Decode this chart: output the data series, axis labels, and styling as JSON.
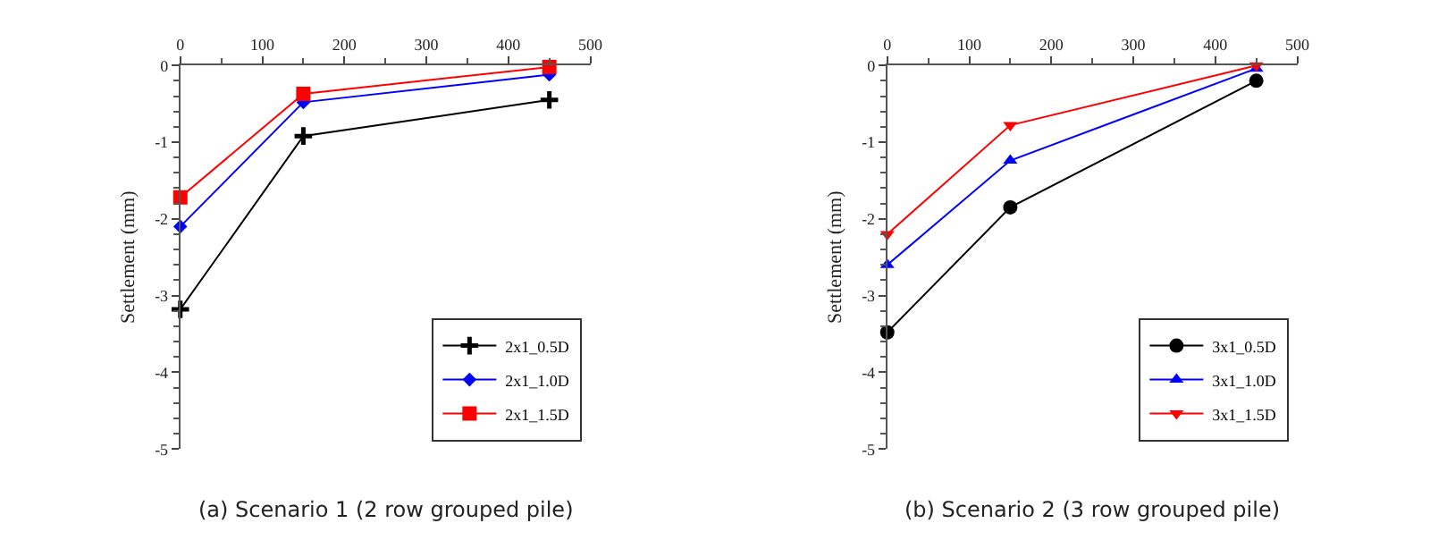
{
  "chart_data": [
    {
      "type": "line",
      "title": "(a) Scenario 1 (2 row grouped pile)",
      "ylabel": "Settlement (mm)",
      "x": [
        0,
        150,
        450
      ],
      "xlim": [
        0,
        500
      ],
      "xticks": [
        0,
        100,
        200,
        300,
        400,
        500
      ],
      "ylim": [
        -5,
        0
      ],
      "yticks": [
        -5,
        -4,
        -3,
        -2,
        -1,
        0
      ],
      "legend": "bottom right",
      "series": [
        {
          "name": "2x1_0.5D",
          "color": "#000000",
          "marker": "cross",
          "values": [
            -3.18,
            -0.92,
            -0.45
          ]
        },
        {
          "name": "2x1_1.0D",
          "color": "#0000ff",
          "marker": "diamond",
          "values": [
            -2.1,
            -0.48,
            -0.12
          ]
        },
        {
          "name": "2x1_1.5D",
          "color": "#ff0000",
          "marker": "square",
          "values": [
            -1.72,
            -0.37,
            -0.02
          ]
        }
      ]
    },
    {
      "type": "line",
      "title": "(b) Scenario 2 (3 row grouped pile)",
      "ylabel": "Settlement (mm)",
      "x": [
        0,
        150,
        450
      ],
      "xlim": [
        0,
        500
      ],
      "xticks": [
        0,
        100,
        200,
        300,
        400,
        500
      ],
      "ylim": [
        -5,
        0
      ],
      "yticks": [
        -5,
        -4,
        -3,
        -2,
        -1,
        0
      ],
      "legend": "bottom right",
      "series": [
        {
          "name": "3x1_0.5D",
          "color": "#000000",
          "marker": "circle",
          "values": [
            -3.48,
            -1.85,
            -0.2
          ]
        },
        {
          "name": "3x1_1.0D",
          "color": "#0000ff",
          "marker": "triangle",
          "values": [
            -2.6,
            -1.24,
            -0.04
          ]
        },
        {
          "name": "3x1_1.5D",
          "color": "#ff0000",
          "marker": "triangle-down",
          "values": [
            -2.2,
            -0.78,
            0
          ]
        }
      ]
    }
  ]
}
